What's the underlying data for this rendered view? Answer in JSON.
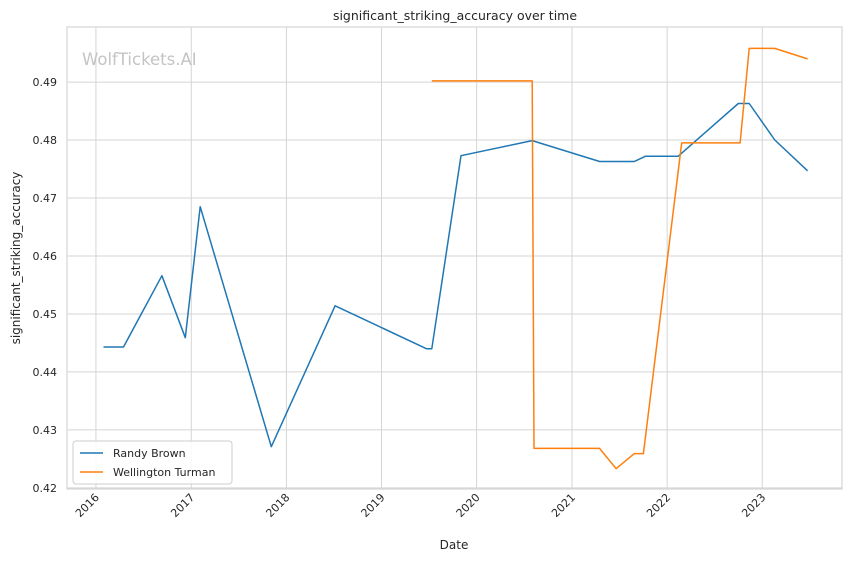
{
  "chart_data": {
    "type": "line",
    "title": "significant_striking_accuracy over time",
    "xlabel": "Date",
    "ylabel": "significant_striking_accuracy",
    "watermark": "WolfTickets.AI",
    "x_ticks": [
      "2016",
      "2017",
      "2018",
      "2019",
      "2020",
      "2021",
      "2022",
      "2023"
    ],
    "y_ticks": [
      "0.42",
      "0.43",
      "0.44",
      "0.45",
      "0.46",
      "0.47",
      "0.48",
      "0.49"
    ],
    "xlim": [
      "2015-09-12",
      "2023-11-03"
    ],
    "ylim": [
      0.4198,
      0.4995
    ],
    "grid": true,
    "legend_position": "lower-left",
    "series": [
      {
        "name": "Randy Brown",
        "color": "#1f77b4",
        "points": [
          [
            "2016-01-30",
            0.4443
          ],
          [
            "2016-04-16",
            0.4443
          ],
          [
            "2016-09-10",
            0.4566
          ],
          [
            "2016-12-09",
            0.4459
          ],
          [
            "2017-02-04",
            0.4685
          ],
          [
            "2017-11-04",
            0.4271
          ],
          [
            "2018-07-07",
            0.4514
          ],
          [
            "2019-06-22",
            0.444
          ],
          [
            "2019-07-13",
            0.444
          ],
          [
            "2019-11-02",
            0.4773
          ],
          [
            "2020-08-01",
            0.4799
          ],
          [
            "2021-04-17",
            0.4763
          ],
          [
            "2021-08-28",
            0.4763
          ],
          [
            "2021-10-09",
            0.4772
          ],
          [
            "2022-02-12",
            0.4772
          ],
          [
            "2022-10-01",
            0.4863
          ],
          [
            "2022-11-12",
            0.4863
          ],
          [
            "2023-02-18",
            0.48
          ],
          [
            "2023-06-24",
            0.4747
          ]
        ]
      },
      {
        "name": "Wellington Turman",
        "color": "#ff7f0e",
        "points": [
          [
            "2019-07-13",
            0.4902
          ],
          [
            "2020-08-01",
            0.4902
          ],
          [
            "2020-08-08",
            0.4268
          ],
          [
            "2021-04-17",
            0.4268
          ],
          [
            "2021-06-19",
            0.4233
          ],
          [
            "2021-08-28",
            0.4259
          ],
          [
            "2021-10-02",
            0.4259
          ],
          [
            "2022-02-26",
            0.4795
          ],
          [
            "2022-10-08",
            0.4795
          ],
          [
            "2022-11-12",
            0.4958
          ],
          [
            "2023-02-18",
            0.4958
          ],
          [
            "2023-06-24",
            0.494
          ]
        ]
      }
    ]
  }
}
